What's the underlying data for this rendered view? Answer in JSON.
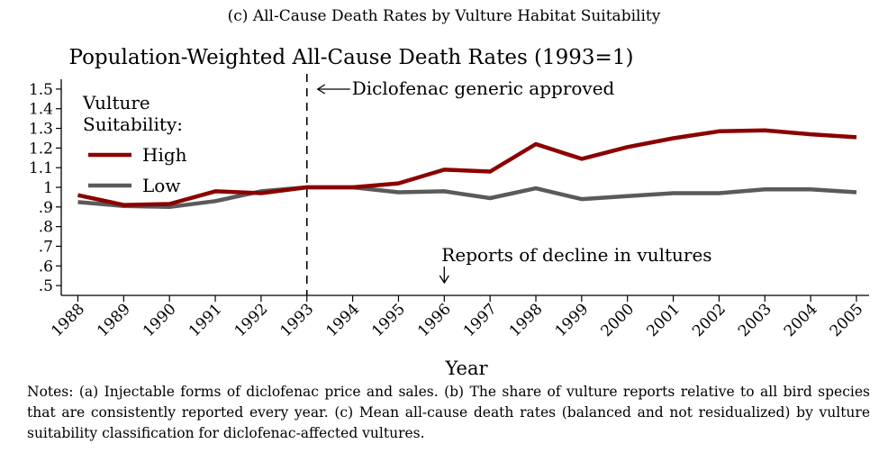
{
  "caption": "(c) All-Cause Death Rates by Vulture Habitat Suitability",
  "notes": "Notes: (a) Injectable forms of diclofenac price and sales. (b) The share of vulture reports relative to all bird species that are consistently reported every year. (c) Mean all-cause death rates (balanced and not residualized) by vulture suitability classification for diclofenac-affected vultures.",
  "chart_data": {
    "type": "line",
    "title": "Population-Weighted All-Cause Death Rates (1993=1)",
    "xlabel": "Year",
    "ylabel": "",
    "x": [
      1988,
      1989,
      1990,
      1991,
      1992,
      1993,
      1994,
      1995,
      1996,
      1997,
      1998,
      1999,
      2000,
      2001,
      2002,
      2003,
      2004,
      2005
    ],
    "x_tick_labels": [
      "1988",
      "1989",
      "1990",
      "1991",
      "1992",
      "1993",
      "1994",
      "1995",
      "1996",
      "1997",
      "1998",
      "1999",
      "2000",
      "2001",
      "2002",
      "2003",
      "2004",
      "2005"
    ],
    "xlim": [
      1987.9,
      2005.3
    ],
    "ylim": [
      0.45,
      1.55
    ],
    "y_ticks": [
      0.5,
      0.6,
      0.7,
      0.8,
      0.9,
      1.0,
      1.1,
      1.2,
      1.3,
      1.4,
      1.5
    ],
    "y_tick_labels": [
      ".5",
      ".6",
      ".7",
      ".8",
      ".9",
      "1",
      "1.1",
      "1.2",
      "1.3",
      "1.4",
      "1.5"
    ],
    "grid": false,
    "legend": {
      "title_line1": "Vulture",
      "title_line2": "Suitability:",
      "placement": "top-left"
    },
    "series": [
      {
        "name": "High",
        "color": "#8b0000",
        "values": [
          0.96,
          0.91,
          0.915,
          0.98,
          0.97,
          1.0,
          1.0,
          1.02,
          1.09,
          1.08,
          1.22,
          1.145,
          1.205,
          1.25,
          1.285,
          1.29,
          1.27,
          1.255
        ]
      },
      {
        "name": "Low",
        "color": "#5a5a5a",
        "values": [
          0.925,
          0.905,
          0.9,
          0.93,
          0.98,
          1.0,
          1.0,
          0.975,
          0.98,
          0.945,
          0.995,
          0.94,
          0.955,
          0.97,
          0.97,
          0.99,
          0.99,
          0.975
        ]
      }
    ],
    "annotations": [
      {
        "text": "Diclofenac generic approved",
        "x": 1993,
        "type": "vline-dashed",
        "arrow": "left"
      },
      {
        "text": "Reports of decline in vultures",
        "x": 1996,
        "type": "arrow-down"
      }
    ]
  }
}
